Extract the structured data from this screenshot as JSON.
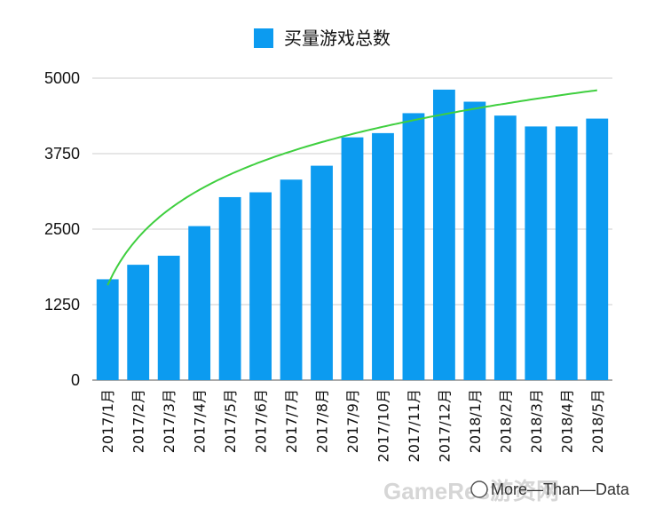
{
  "chart_data": {
    "type": "bar",
    "categories": [
      "2017/1月",
      "2017/2月",
      "2017/3月",
      "2017/4月",
      "2017/5月",
      "2017/6月",
      "2017/7月",
      "2017/8月",
      "2017/9月",
      "2017/10月",
      "2017/11月",
      "2017/12月",
      "2018/1月",
      "2018/2月",
      "2018/3月",
      "2018/4月",
      "2018/5月"
    ],
    "series": [
      {
        "name": "买量游戏总数",
        "values": [
          1670,
          1910,
          2060,
          2550,
          3030,
          3110,
          3320,
          3550,
          4020,
          4090,
          4420,
          4810,
          4610,
          4380,
          4200,
          4200,
          4330
        ],
        "color": "#0c9bf0"
      }
    ],
    "trendline": {
      "type": "logarithmic",
      "color": "#3fcf3f",
      "start_value": 1570,
      "end_value": 4800
    },
    "ylim": [
      0,
      5000
    ],
    "yticks": [
      "0",
      "1250",
      "2500",
      "3750",
      "5000"
    ],
    "grid": "horizontal",
    "legend_position": "top",
    "title": "",
    "xlabel": "",
    "ylabel": ""
  },
  "watermark": {
    "ghost_text": "GameRes游资网",
    "text": "More—Than—Data"
  }
}
